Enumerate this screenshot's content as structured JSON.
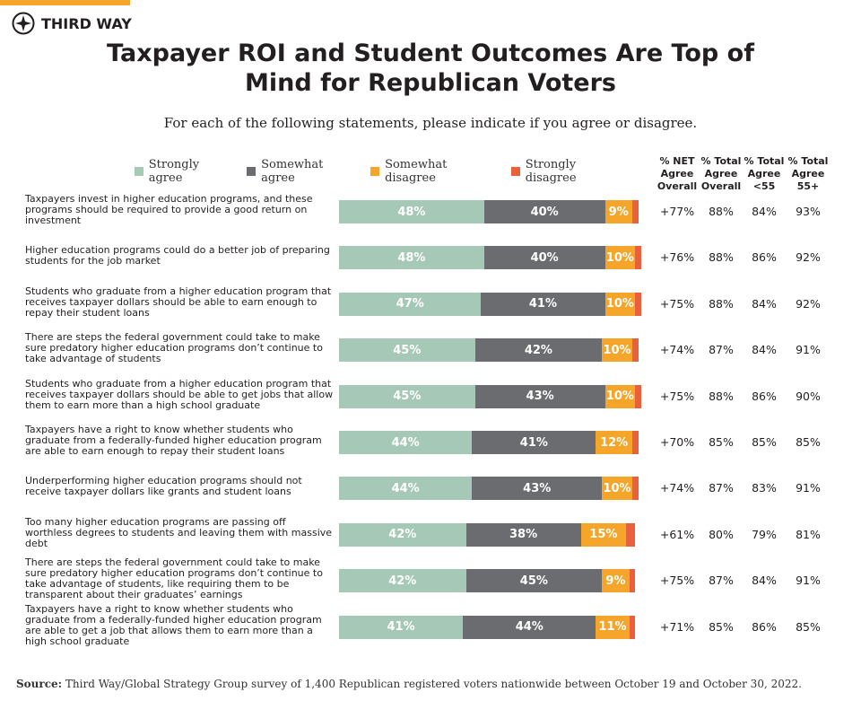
{
  "brand": "THIRD WAY",
  "chart_data": {
    "type": "stacked-bar",
    "title": "Taxpayer ROI and Student Outcomes Are Top of Mind for Republican Voters",
    "subtitle": "For each of the following statements, please indicate if you agree or disagree.",
    "xlim": [
      0,
      100
    ],
    "categories": [
      "Taxpayers invest in higher education programs, and these programs should be required to provide a good return on investment",
      "Higher education programs could do a better job of preparing students for the job market",
      "Students who graduate from a higher education program that receives taxpayer dollars should be able to earn enough to repay their student loans",
      "There are steps the federal government could take to make sure predatory higher education programs don’t continue to take advantage of students",
      "Students who graduate from a higher education program that receives taxpayer dollars should be able to get jobs that allow them to earn more than a high school graduate",
      "Taxpayers have a right to know whether students who graduate from a federally-funded higher education program are able to earn enough to repay their student loans",
      "Underperforming higher education programs should not receive taxpayer dollars like grants and student loans",
      "Too many higher education programs are passing off worthless degrees to students and leaving them with massive debt",
      "There are steps the federal government could take to make sure predatory higher education programs don’t continue to take advantage of students, like requiring them to be transparent about their graduates’ earnings",
      "Taxpayers have a right to know whether students who graduate from a federally-funded higher education program are able to get a job that allows them to earn more than a high school graduate"
    ],
    "series": [
      {
        "name": "Strongly agree",
        "color": "#a6c8b6",
        "values": [
          48,
          48,
          47,
          45,
          45,
          44,
          44,
          42,
          42,
          41
        ],
        "value_labels": [
          "48%",
          "48%",
          "47%",
          "45%",
          "45%",
          "44%",
          "44%",
          "42%",
          "42%",
          "41%"
        ]
      },
      {
        "name": "Somewhat agree",
        "color": "#6b6c6f",
        "values": [
          40,
          40,
          41,
          42,
          43,
          41,
          43,
          38,
          45,
          44
        ],
        "value_labels": [
          "40%",
          "40%",
          "41%",
          "42%",
          "43%",
          "41%",
          "43%",
          "38%",
          "45%",
          "44%"
        ]
      },
      {
        "name": "Somewhat disagree",
        "color": "#f5a52a",
        "values": [
          9,
          10,
          10,
          10,
          10,
          12,
          10,
          15,
          9,
          11
        ],
        "value_labels": [
          "9%",
          "10%",
          "10%",
          "10%",
          "10%",
          "12%",
          "10%",
          "15%",
          "9%",
          "11%"
        ]
      },
      {
        "name": "Strongly disagree",
        "color": "#e8603c",
        "values": [
          2,
          2,
          2,
          2,
          2,
          2,
          2,
          3,
          2,
          2
        ]
      }
    ],
    "table_columns": [
      {
        "header": "% NET Agree Overall",
        "values": [
          77,
          76,
          75,
          74,
          75,
          70,
          74,
          61,
          75,
          71
        ],
        "value_labels": [
          "+77%",
          "+76%",
          "+75%",
          "+74%",
          "+75%",
          "+70%",
          "+74%",
          "+61%",
          "+75%",
          "+71%"
        ]
      },
      {
        "header": "% Total Agree Overall",
        "values": [
          88,
          88,
          88,
          87,
          88,
          85,
          87,
          80,
          87,
          85
        ],
        "value_labels": [
          "88%",
          "88%",
          "88%",
          "87%",
          "88%",
          "85%",
          "87%",
          "80%",
          "87%",
          "85%"
        ]
      },
      {
        "header": "% Total Agree <55",
        "values": [
          84,
          86,
          84,
          84,
          86,
          85,
          83,
          79,
          84,
          86
        ],
        "value_labels": [
          "84%",
          "86%",
          "84%",
          "84%",
          "86%",
          "85%",
          "83%",
          "79%",
          "84%",
          "86%"
        ]
      },
      {
        "header": "% Total Agree 55+",
        "values": [
          93,
          92,
          92,
          91,
          90,
          85,
          91,
          81,
          91,
          85
        ],
        "value_labels": [
          "93%",
          "92%",
          "92%",
          "91%",
          "90%",
          "85%",
          "91%",
          "81%",
          "91%",
          "85%"
        ]
      }
    ],
    "source_label": "Source:",
    "source": "Third Way/Global Strategy Group survey of 1,400 Republican registered voters nationwide between October 19 and October 30, 2022."
  }
}
